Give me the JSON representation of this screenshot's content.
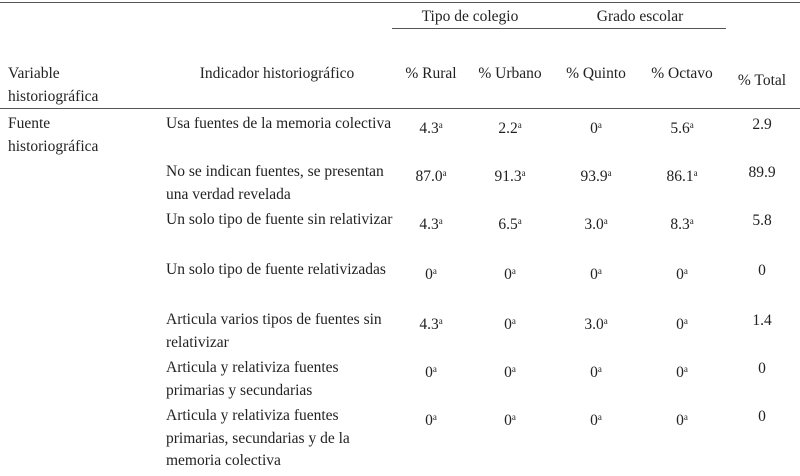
{
  "header": {
    "group_tipo": "Tipo de colegio",
    "group_grado": "Grado escolar",
    "variable": "Variable historiográfica",
    "indicador": "Indicador historiográfico",
    "columns": [
      "% Rural",
      "% Urbano",
      "% Quinto",
      "% Octavo",
      "% Total"
    ]
  },
  "variable_name": "Fuente historiográfica",
  "superscript": "a",
  "rows": [
    {
      "indicator": "Usa fuentes de la memoria colectiva",
      "values": [
        "4.3",
        "2.2",
        "0",
        "5.6"
      ],
      "total": "2.9"
    },
    {
      "indicator": "No se indican fuentes, se presentan una verdad revelada",
      "values": [
        "87.0",
        "91.3",
        "93.9",
        "86.1"
      ],
      "total": "89.9"
    },
    {
      "indicator": "Un solo tipo de fuente sin relativizar",
      "values": [
        "4.3",
        "6.5",
        "3.0",
        "8.3"
      ],
      "total": "5.8"
    },
    {
      "indicator": "Un solo tipo de fuente relativizadas",
      "values": [
        "0",
        "0",
        "0",
        "0"
      ],
      "total": "0"
    },
    {
      "indicator": "Articula varios tipos de fuentes sin relativizar",
      "values": [
        "4.3",
        "0",
        "3.0",
        "0"
      ],
      "total": "1.4"
    },
    {
      "indicator": "Articula y relativiza fuentes primarias y secundarias",
      "values": [
        "0",
        "0",
        "0",
        "0"
      ],
      "total": "0"
    },
    {
      "indicator": "Articula y relativiza fuentes primarias, secundarias y de la memoria colectiva",
      "values": [
        "0",
        "0",
        "0",
        "0"
      ],
      "total": "0"
    }
  ]
}
